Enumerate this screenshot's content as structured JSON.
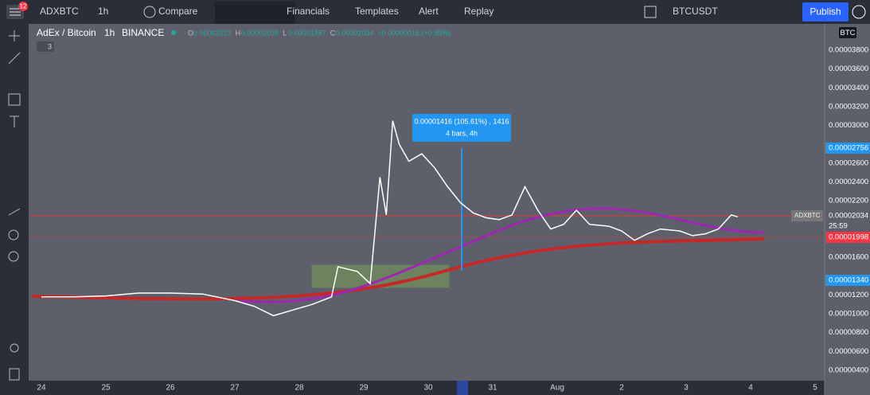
{
  "toolbar": {
    "badge": "12",
    "symbol": "ADXBTC",
    "interval": "1h",
    "compare": "Compare",
    "financials": "Financials",
    "templates": "Templates",
    "alert": "Alert",
    "replay": "Replay",
    "compare_symbol": "BTCUSDT",
    "publish": "Publish"
  },
  "legend": {
    "title": "AdEx / Bitcoin",
    "interval": "1h",
    "exchange": "BINANCE",
    "open_label": "O",
    "open": "0.00002023",
    "high_label": "H",
    "high": "0.00002039",
    "low_label": "L",
    "low": "0.00001987",
    "close_label": "C",
    "close": "0.00002034",
    "change": "+0.00000018 (+0.89%)",
    "indicators_count": "3"
  },
  "measure": {
    "line1": "0.00001416 (105.61%) , 1416",
    "line2": "4 bars, 4h"
  },
  "price_axis": {
    "currency": "BTC",
    "labels": [
      "0.00003800",
      "0.00003600",
      "0.00003400",
      "0.00003200",
      "0.00003000",
      "0.00002600",
      "0.00002400",
      "0.00002200",
      "0.00001600",
      "0.00001200",
      "0.00001000",
      "0.00000800",
      "0.00000600",
      "0.00000400"
    ],
    "markers": [
      "0.00002756",
      "0.00002034",
      "25:59",
      "0.00001998",
      "0.00001340"
    ],
    "symbol_tag": "ADXBTC"
  },
  "time_axis": {
    "labels": [
      "24",
      "25",
      "26",
      "27",
      "28",
      "29",
      "30",
      "31",
      "Aug",
      "2",
      "3",
      "4",
      "5"
    ]
  },
  "price_series": {
    "x": [
      0,
      0.5,
      1,
      1.5,
      2,
      2.5,
      3,
      3.3,
      3.6,
      3.9,
      4.2,
      4.5,
      4.6,
      4.9,
      5.1,
      5.25,
      5.35,
      5.45,
      5.55,
      5.7,
      5.9,
      6.1,
      6.3,
      6.5,
      6.7,
      6.9,
      7.1,
      7.3,
      7.5,
      7.7,
      7.9,
      8.1,
      8.3,
      8.5,
      8.8,
      9.0,
      9.2,
      9.4,
      9.6,
      9.9,
      10.1,
      10.3,
      10.5,
      10.7,
      10.8
    ],
    "values": [
      1.18e-05,
      1.18e-05,
      1.19e-05,
      1.22e-05,
      1.22e-05,
      1.21e-05,
      1.14e-05,
      1.08e-05,
      9.8e-06,
      1.04e-05,
      1.1e-05,
      1.18e-05,
      1.5e-05,
      1.45e-05,
      1.32e-05,
      2.45e-05,
      2.05e-05,
      3.05e-05,
      2.8e-05,
      2.62e-05,
      2.7e-05,
      2.55e-05,
      2.35e-05,
      2.18e-05,
      2.07e-05,
      2.02e-05,
      2e-05,
      2.05e-05,
      2.35e-05,
      2.1e-05,
      1.9e-05,
      1.95e-05,
      2.1e-05,
      1.95e-05,
      1.93e-05,
      1.88e-05,
      1.78e-05,
      1.85e-05,
      1.9e-05,
      1.88e-05,
      1.83e-05,
      1.85e-05,
      1.9e-05,
      2.05e-05,
      2.03e-05
    ]
  }
}
